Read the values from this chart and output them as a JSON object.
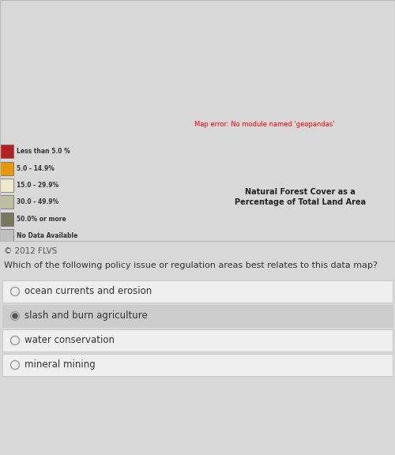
{
  "title_line1": "Natural Forest Cover as a",
  "title_line2": "Percentage of Total Land Area",
  "copyright": "© 2012 FLVS",
  "question": "Which of the following policy issue or regulation areas best relates to this data map?",
  "options": [
    "ocean currents and erosion",
    "slash and burn agriculture",
    "water conservation",
    "mineral mining"
  ],
  "selected_option": 1,
  "legend_items": [
    {
      "label": "Less than 5.0 %",
      "color": "#B22222"
    },
    {
      "label": "5.0 - 14.9%",
      "color": "#E8960A"
    },
    {
      "label": "15.0 - 29.9%",
      "color": "#F0E8C8"
    },
    {
      "label": "30.0 - 49.9%",
      "color": "#BEBEA0"
    },
    {
      "label": "50.0% or more",
      "color": "#787860"
    },
    {
      "label": "No Data Available",
      "color": "#C0C0C0"
    }
  ],
  "forest_cover": {
    "Canada": "#F0E8C8",
    "United States of America": "#F0E8C8",
    "Alaska": "#F0E8C8",
    "Mexico": "#E8960A",
    "Guatemala": "#B22222",
    "Belize": "#E8960A",
    "Honduras": "#E8960A",
    "El Salvador": "#B22222",
    "Nicaragua": "#E8960A",
    "Costa Rica": "#E8960A",
    "Panama": "#E8960A",
    "Cuba": "#E8960A",
    "Jamaica": "#B22222",
    "Haiti": "#B22222",
    "Dominican Rep.": "#B22222",
    "Trinidad and Tobago": "#E8960A",
    "Colombia": "#787860",
    "Venezuela": "#787860",
    "Guyana": "#787860",
    "Suriname": "#787860",
    "Fr. Guiana": "#787860",
    "Brazil": "#787860",
    "Ecuador": "#787860",
    "Peru": "#787860",
    "Bolivia": "#BEBEA0",
    "Paraguay": "#E8960A",
    "Uruguay": "#B22222",
    "Argentina": "#E8960A",
    "Chile": "#E8960A",
    "Falkland Is.": "#C0C0C0",
    "Greenland": "#C0C0C0",
    "Iceland": "#B22222",
    "Norway": "#BEBEA0",
    "Sweden": "#BEBEA0",
    "Finland": "#BEBEA0",
    "Denmark": "#B22222",
    "United Kingdom": "#B22222",
    "Ireland": "#B22222",
    "France": "#E8960A",
    "Spain": "#E8960A",
    "Portugal": "#E8960A",
    "Germany": "#E8960A",
    "Poland": "#E8960A",
    "Czech Rep.": "#E8960A",
    "Slovakia": "#E8960A",
    "Austria": "#E8960A",
    "Switzerland": "#E8960A",
    "Italy": "#E8960A",
    "Netherlands": "#B22222",
    "Belgium": "#B22222",
    "Luxembourg": "#E8960A",
    "Hungary": "#E8960A",
    "Romania": "#E8960A",
    "Bulgaria": "#E8960A",
    "Serbia": "#E8960A",
    "Croatia": "#BEBEA0",
    "Bosnia and Herz.": "#BEBEA0",
    "Slovenia": "#BEBEA0",
    "Albania": "#E8960A",
    "Greece": "#E8960A",
    "Macedonia": "#E8960A",
    "Moldova": "#B22222",
    "Estonia": "#BEBEA0",
    "Latvia": "#BEBEA0",
    "Lithuania": "#BEBEA0",
    "Belarus": "#BEBEA0",
    "Ukraine": "#B22222",
    "Russia": "#BEBEA0",
    "Turkey": "#E8960A",
    "Cyprus": "#B22222",
    "Morocco": "#B22222",
    "Algeria": "#B22222",
    "Tunisia": "#B22222",
    "Libya": "#B22222",
    "Egypt": "#B22222",
    "Sudan": "#B22222",
    "S. Sudan": "#B22222",
    "Ethiopia": "#B22222",
    "Eritrea": "#B22222",
    "Djibouti": "#B22222",
    "Somalia": "#B22222",
    "Kenya": "#B22222",
    "Tanzania": "#E8960A",
    "Uganda": "#E8960A",
    "Rwanda": "#E8960A",
    "Burundi": "#E8960A",
    "Mozambique": "#E8960A",
    "Zimbabwe": "#E8960A",
    "Zambia": "#E8960A",
    "Malawi": "#E8960A",
    "Angola": "#E8960A",
    "Namibia": "#B22222",
    "Botswana": "#B22222",
    "South Africa": "#B22222",
    "Lesotho": "#B22222",
    "Swaziland": "#E8960A",
    "Nigeria": "#E8960A",
    "Ghana": "#E8960A",
    "Ivory Coast": "#E8960A",
    "Cameroon": "#787860",
    "Congo": "#787860",
    "Dem. Rep. Congo": "#787860",
    "Gabon": "#787860",
    "Eq. Guinea": "#787860",
    "Central African Rep.": "#E8960A",
    "Chad": "#B22222",
    "Niger": "#B22222",
    "Mali": "#B22222",
    "Mauritania": "#B22222",
    "Senegal": "#B22222",
    "Gambia": "#B22222",
    "Guinea-Bissau": "#E8960A",
    "Guinea": "#E8960A",
    "Sierra Leone": "#E8960A",
    "Liberia": "#787860",
    "Togo": "#E8960A",
    "Benin": "#B22222",
    "Burkina Faso": "#B22222",
    "Cape Verde": "#B22222",
    "São Tomé and Príncipe": "#787860",
    "Saudi Arabia": "#B22222",
    "Yemen": "#B22222",
    "Oman": "#B22222",
    "United Arab Emirates": "#B22222",
    "Qatar": "#B22222",
    "Bahrain": "#B22222",
    "Kuwait": "#B22222",
    "Iraq": "#B22222",
    "Iran": "#B22222",
    "Syria": "#B22222",
    "Jordan": "#B22222",
    "Israel": "#B22222",
    "Palestine": "#B22222",
    "Lebanon": "#B22222",
    "Afghanistan": "#B22222",
    "Pakistan": "#B22222",
    "India": "#E8960A",
    "Nepal": "#E8960A",
    "Bhutan": "#787860",
    "Bangladesh": "#B22222",
    "Sri Lanka": "#E8960A",
    "Maldives": "#B22222",
    "Myanmar": "#787860",
    "Thailand": "#E8960A",
    "Laos": "#787860",
    "Vietnam": "#E8960A",
    "Cambodia": "#E8960A",
    "Malaysia": "#787860",
    "Indonesia": "#787860",
    "Philippines": "#E8960A",
    "Papua New Guinea": "#787860",
    "Timor-Leste": "#E8960A",
    "China": "#E8960A",
    "Taiwan": "#787860",
    "Mongolia": "#B22222",
    "North Korea": "#E8960A",
    "South Korea": "#E8960A",
    "Japan": "#BEBEA0",
    "Kazakhstan": "#B22222",
    "Uzbekistan": "#B22222",
    "Turkmenistan": "#B22222",
    "Kyrgyzstan": "#E8960A",
    "Tajikistan": "#E8960A",
    "Azerbaijan": "#E8960A",
    "Armenia": "#E8960A",
    "Georgia": "#E8960A",
    "Australia": "#F0E8C8",
    "New Zealand": "#BEBEA0",
    "Madagascar": "#E8960A",
    "Mauritius": "#E8960A",
    "Reunion": "#787860",
    "Comoros": "#E8960A",
    "Antarctica": "#C0C0C0"
  },
  "bg_color": "#D8D8D8",
  "map_bg": "#F0F0F0",
  "ocean_color": "#C8D8E8",
  "option_bg_selected": "#CCCCCC",
  "option_bg_normal": "#EFEFEF",
  "option_border": "#CCCCCC",
  "text_color": "#333333",
  "radio_color": "#999999",
  "radio_selected_color": "#555555",
  "map_xlim": [
    -175,
    180
  ],
  "map_ylim": [
    -58,
    85
  ],
  "fig_width": 5.0,
  "fig_height": 5.76,
  "dpi": 100
}
